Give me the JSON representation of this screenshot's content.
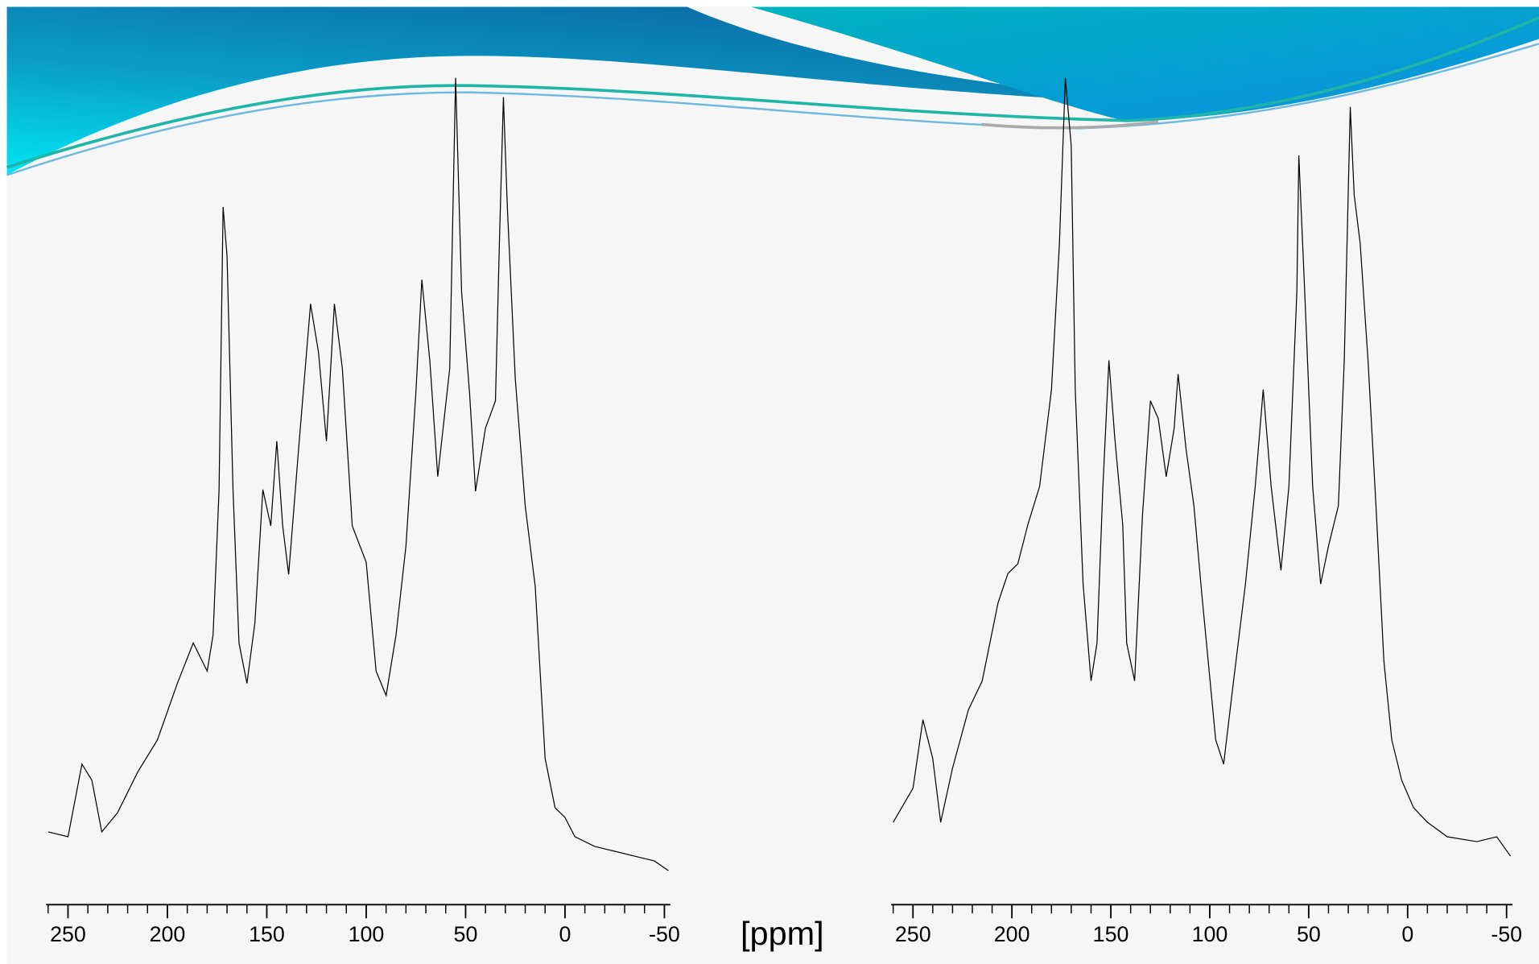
{
  "chart_data": [
    {
      "type": "line",
      "xlabel": "[ppm]",
      "color": "#000000",
      "xlim": [
        261,
        -53
      ],
      "ylim": [
        0,
        100
      ],
      "xticks": [
        250,
        200,
        150,
        100,
        50,
        0,
        -50
      ],
      "xticks_minor": [
        260,
        240,
        230,
        220,
        210,
        190,
        180,
        170,
        160,
        140,
        130,
        120,
        110,
        90,
        80,
        70,
        60,
        40,
        30,
        20,
        10,
        -10,
        -20,
        -30,
        -40
      ],
      "x": [
        260,
        250,
        243,
        238,
        233,
        225,
        215,
        205,
        195,
        187,
        180,
        177,
        174,
        172,
        170,
        167,
        164,
        160,
        156,
        152,
        148,
        145,
        142,
        139,
        134,
        128,
        124,
        120,
        116,
        112,
        107,
        100,
        95,
        90,
        85,
        80,
        75,
        72,
        68,
        64,
        58,
        55,
        52,
        48,
        45,
        40,
        35,
        33,
        31,
        29,
        25,
        20,
        15,
        10,
        5,
        0,
        -5,
        -15,
        -25,
        -35,
        -45,
        -52
      ],
      "values": [
        6.6,
        6,
        15,
        13,
        6.6,
        9,
        14,
        18,
        25,
        30,
        26.5,
        31,
        49,
        84,
        78,
        49,
        30,
        25,
        32.5,
        49,
        44.5,
        55,
        44.5,
        38.5,
        54,
        72,
        66,
        55,
        72,
        64,
        44.5,
        40,
        26.5,
        23.5,
        31,
        42,
        61,
        75,
        65,
        50.6,
        64,
        100,
        73.5,
        61,
        48.8,
        56.6,
        60,
        79.5,
        97.6,
        84,
        62.7,
        47,
        37,
        15.7,
        9.6,
        8.4,
        6,
        4.8,
        4.2,
        3.6,
        3,
        1.8
      ]
    },
    {
      "type": "line",
      "color": "#000000",
      "xlim": [
        261,
        -53
      ],
      "ylim": [
        0,
        100
      ],
      "xticks": [
        250,
        200,
        150,
        100,
        50,
        0,
        -50
      ],
      "xticks_minor": [
        260,
        240,
        230,
        220,
        210,
        190,
        180,
        170,
        160,
        140,
        130,
        120,
        110,
        90,
        80,
        70,
        60,
        40,
        30,
        20,
        10,
        -10,
        -20,
        -30,
        -40
      ],
      "x": [
        260,
        250,
        245,
        240,
        236,
        230,
        222,
        215,
        207,
        202,
        197,
        192,
        186,
        180,
        176,
        173,
        170,
        168,
        164,
        160,
        157,
        154,
        151,
        148,
        144,
        142,
        138,
        134,
        130,
        126,
        122,
        118,
        116,
        112,
        108,
        104,
        97,
        93,
        88,
        82,
        77,
        73,
        69,
        64,
        60,
        56,
        55,
        52,
        48,
        44,
        40,
        35,
        32,
        29,
        27,
        24,
        20,
        16,
        12,
        8,
        3,
        -3,
        -10,
        -20,
        -35,
        -45,
        -52
      ],
      "values": [
        7.8,
        12,
        20.5,
        15.7,
        7.8,
        14.5,
        21.7,
        25.3,
        35,
        38.6,
        39.8,
        44.6,
        49.4,
        61.4,
        79.5,
        100,
        91.6,
        61.4,
        37.3,
        25.3,
        30,
        49.4,
        65,
        55.4,
        44.6,
        30,
        25.3,
        45.8,
        60,
        57.8,
        50.6,
        56.6,
        63.3,
        54,
        47,
        36,
        18,
        15,
        25.3,
        37.3,
        49.4,
        61.4,
        49.4,
        39,
        49.4,
        73.5,
        90.4,
        73.5,
        49.4,
        37.3,
        42,
        47,
        65,
        96.4,
        85.5,
        79.5,
        65,
        47,
        27.7,
        18,
        13,
        9.6,
        7.8,
        6,
        5.4,
        6,
        3.6
      ]
    }
  ]
}
